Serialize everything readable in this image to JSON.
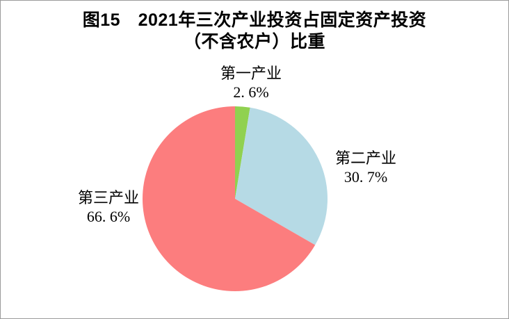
{
  "figure": {
    "title_line1": "图15　2021年三次产业投资占固定资产投资",
    "title_line2": "（不含农户）比重"
  },
  "chart_data": {
    "type": "pie",
    "title": "图15 2021年三次产业投资占固定资产投资（不含农户）比重",
    "start_angle_deg": 0,
    "direction": "clockwise",
    "legend": "none",
    "labels_position": "outside",
    "series": [
      {
        "id": "primary-industry",
        "name": "第一产业",
        "value": 2.6,
        "display_value": "2. 6%",
        "color": "#90D150"
      },
      {
        "id": "secondary-industry",
        "name": "第二产业",
        "value": 30.7,
        "display_value": "30. 7%",
        "color": "#B6DAE5"
      },
      {
        "id": "tertiary-industry",
        "name": "第三产业",
        "value": 66.6,
        "display_value": "66. 6%",
        "color": "#FC7D7E"
      }
    ]
  },
  "colors": {
    "page_border": "#9a9a9a",
    "text": "#000000",
    "background": "#ffffff"
  }
}
